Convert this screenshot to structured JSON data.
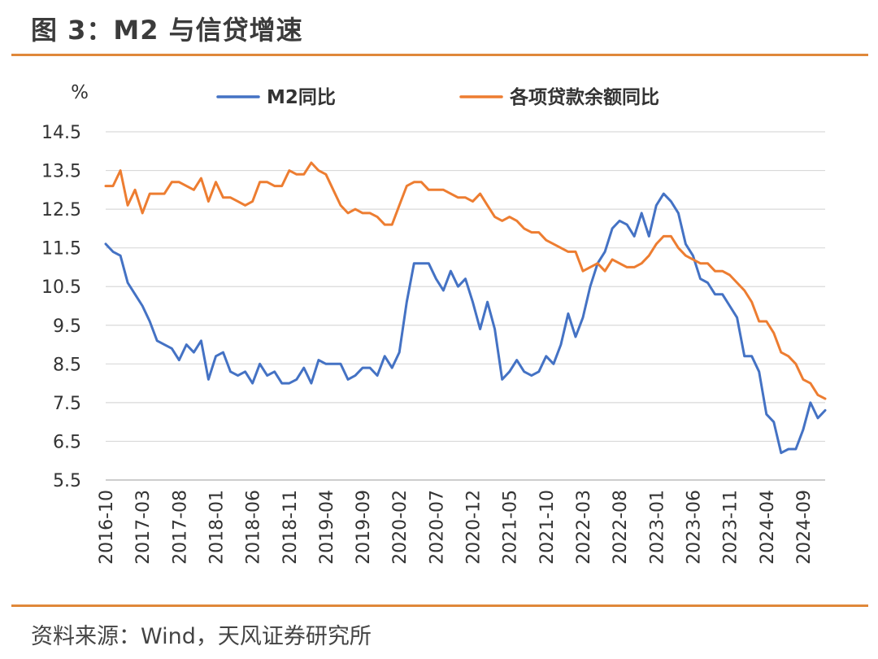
{
  "figure": {
    "title": "图 3：M2 与信贷增速",
    "source": "资料来源：Wind，天风证券研究所",
    "accent_color": "#e0883a"
  },
  "chart_data": {
    "type": "line",
    "unit_label": "%",
    "ylim": [
      5.5,
      14.5
    ],
    "yticks": [
      "14.5",
      "13.5",
      "12.5",
      "11.5",
      "10.5",
      "9.5",
      "8.5",
      "7.5",
      "6.5",
      "5.5"
    ],
    "xticks": [
      "2016-10",
      "2017-03",
      "2017-08",
      "2018-01",
      "2018-06",
      "2018-11",
      "2019-04",
      "2019-09",
      "2020-02",
      "2020-07",
      "2020-12",
      "2021-05",
      "2021-10",
      "2022-03",
      "2022-08",
      "2023-01",
      "2023-06",
      "2023-11",
      "2024-04",
      "2024-09"
    ],
    "x_start": "2016-10",
    "x_end": "2024-12",
    "grid": "horizontal",
    "legend": "top",
    "series": [
      {
        "name": "M2同比",
        "color": "#4472c4",
        "values": [
          11.6,
          11.4,
          11.3,
          10.6,
          10.3,
          10.0,
          9.6,
          9.1,
          9.0,
          8.9,
          8.6,
          9.0,
          8.8,
          9.1,
          8.1,
          8.7,
          8.8,
          8.3,
          8.2,
          8.3,
          8.0,
          8.5,
          8.2,
          8.3,
          8.0,
          8.0,
          8.1,
          8.4,
          8.0,
          8.6,
          8.5,
          8.5,
          8.5,
          8.1,
          8.2,
          8.4,
          8.4,
          8.2,
          8.7,
          8.4,
          8.8,
          10.1,
          11.1,
          11.1,
          11.1,
          10.7,
          10.4,
          10.9,
          10.5,
          10.7,
          10.1,
          9.4,
          10.1,
          9.4,
          8.1,
          8.3,
          8.6,
          8.3,
          8.2,
          8.3,
          8.7,
          8.5,
          9.0,
          9.8,
          9.2,
          9.7,
          10.5,
          11.1,
          11.4,
          12.0,
          12.2,
          12.1,
          11.8,
          12.4,
          11.8,
          12.6,
          12.9,
          12.7,
          12.4,
          11.6,
          11.3,
          10.7,
          10.6,
          10.3,
          10.3,
          10.0,
          9.7,
          8.7,
          8.7,
          8.3,
          7.2,
          7.0,
          6.2,
          6.3,
          6.3,
          6.8,
          7.5,
          7.1,
          7.3
        ]
      },
      {
        "name": "各项贷款余额同比",
        "color": "#ed7d31",
        "values": [
          13.1,
          13.1,
          13.5,
          12.6,
          13.0,
          12.4,
          12.9,
          12.9,
          12.9,
          13.2,
          13.2,
          13.1,
          13.0,
          13.3,
          12.7,
          13.2,
          12.8,
          12.8,
          12.7,
          12.6,
          12.7,
          13.2,
          13.2,
          13.1,
          13.1,
          13.5,
          13.4,
          13.4,
          13.7,
          13.5,
          13.4,
          13.0,
          12.6,
          12.4,
          12.5,
          12.4,
          12.4,
          12.3,
          12.1,
          12.1,
          12.6,
          13.1,
          13.2,
          13.2,
          13.0,
          13.0,
          13.0,
          12.9,
          12.8,
          12.8,
          12.7,
          12.9,
          12.6,
          12.3,
          12.2,
          12.3,
          12.2,
          12.0,
          11.9,
          11.9,
          11.7,
          11.6,
          11.5,
          11.4,
          11.4,
          10.9,
          11.0,
          11.1,
          10.9,
          11.2,
          11.1,
          11.0,
          11.0,
          11.1,
          11.3,
          11.6,
          11.8,
          11.8,
          11.5,
          11.3,
          11.2,
          11.1,
          11.1,
          10.9,
          10.9,
          10.8,
          10.6,
          10.4,
          10.1,
          9.6,
          9.6,
          9.3,
          8.8,
          8.7,
          8.5,
          8.1,
          8.0,
          7.7,
          7.6
        ]
      }
    ]
  }
}
